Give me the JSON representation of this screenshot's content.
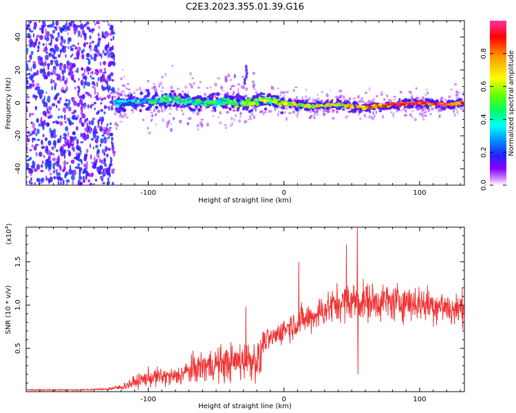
{
  "figure_title": "C2E3.2023.355.01.39.G16",
  "chart_data": [
    {
      "type": "heatmap",
      "xlabel": "Height of straight line (km)",
      "ylabel": "Frequency (Hz)",
      "xlim": [
        -190,
        133
      ],
      "ylim": [
        -50,
        50
      ],
      "xticks": [
        -100,
        0,
        100
      ],
      "yticks": [
        -40,
        -20,
        0,
        20,
        40
      ],
      "colorbar": {
        "label": "Normalized spectral amplitude",
        "range": [
          0,
          1
        ],
        "ticks": [
          "0.0",
          "0.2",
          "0.4",
          "0.6",
          "0.8"
        ]
      },
      "noise_region_x": [
        -190,
        -125
      ],
      "signal_track": {
        "x": [
          -125,
          -100,
          -80,
          -60,
          -40,
          -30,
          -20,
          -10,
          0,
          20,
          40,
          60,
          80,
          100,
          120,
          133
        ],
        "frequency": [
          0,
          1,
          2,
          0,
          1,
          0,
          1,
          2,
          0,
          -2,
          -1,
          -3,
          -1,
          0,
          -1,
          0
        ],
        "amplitude": [
          0.25,
          0.35,
          0.4,
          0.42,
          0.45,
          0.5,
          0.55,
          0.55,
          0.6,
          0.62,
          0.65,
          0.72,
          0.8,
          0.9,
          0.88,
          0.85
        ]
      },
      "side_feature": {
        "x": -28,
        "frequency": 22,
        "amplitude": 0.15
      }
    },
    {
      "type": "line",
      "xlabel": "Height of straight line (km)",
      "ylabel": "SNR (10 * v/v)",
      "exponent_label": "(x10",
      "exponent_power": "4",
      "exponent_close": ")",
      "xlim": [
        -190,
        133
      ],
      "ylim": [
        0,
        19000
      ],
      "xticks": [
        -100,
        0,
        100
      ],
      "yticks": [
        "0.5",
        "1.0",
        "1.5"
      ],
      "color": "#ee3333",
      "x": [
        -190,
        -150,
        -130,
        -120,
        -110,
        -100,
        -90,
        -80,
        -70,
        -60,
        -50,
        -40,
        -30,
        -20,
        -17,
        -16,
        -10,
        0,
        10,
        20,
        30,
        40,
        50,
        54,
        60,
        70,
        80,
        90,
        100,
        110,
        120,
        125,
        130,
        133
      ],
      "y": [
        200,
        200,
        300,
        500,
        1100,
        1600,
        1700,
        1700,
        2400,
        2900,
        3200,
        3300,
        3600,
        3800,
        3400,
        5800,
        6000,
        7200,
        8000,
        8600,
        9500,
        10200,
        10500,
        10500,
        10400,
        10400,
        10300,
        10400,
        10200,
        10000,
        9800,
        9300,
        9700,
        9800
      ],
      "spikes": [
        {
          "x": 54,
          "y": 19000
        },
        {
          "x": 54.5,
          "y": 2000
        },
        {
          "x": 46,
          "y": 17000
        },
        {
          "x": 11,
          "y": 15000
        },
        {
          "x": -28,
          "y": 9800
        }
      ]
    }
  ]
}
